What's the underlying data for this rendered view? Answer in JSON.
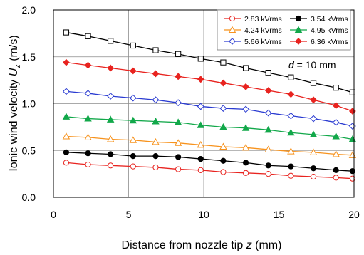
{
  "chart_data": {
    "type": "line",
    "title": "",
    "xlabel_prefix": "Distance from nozzle tip ",
    "xlabel_var": "z",
    "xlabel_unit": " (mm)",
    "ylabel_prefix": "Ionic wind velocity ",
    "ylabel_var": "U",
    "ylabel_sub": "z",
    "ylabel_unit": " (m/s)",
    "xlim": [
      0,
      20
    ],
    "ylim": [
      0,
      2.0
    ],
    "xticks": [
      0,
      5,
      10,
      15,
      20
    ],
    "xtick_labels": [
      "0",
      "5",
      "10",
      "15",
      "20"
    ],
    "yticks": [
      0,
      0.5,
      1.0,
      1.5,
      2.0
    ],
    "ytick_labels": [
      "0.0",
      "0.5",
      "1.0",
      "1.5",
      "2.0"
    ],
    "grid": true,
    "legend_position": "top-right",
    "annotation": {
      "var": "d",
      "text": " = 10 mm"
    },
    "x": [
      0.85,
      2.3,
      3.8,
      5.3,
      6.8,
      8.3,
      9.8,
      11.3,
      12.8,
      14.3,
      15.8,
      17.3,
      18.8,
      19.9
    ],
    "series": [
      {
        "name": "2.83 kVrms",
        "color": "#e8231f",
        "marker": "circle-open",
        "values": [
          0.37,
          0.35,
          0.34,
          0.33,
          0.32,
          0.3,
          0.29,
          0.27,
          0.26,
          0.25,
          0.23,
          0.22,
          0.21,
          0.2
        ]
      },
      {
        "name": "3.54 kVrms",
        "color": "#000000",
        "marker": "circle-filled",
        "values": [
          0.48,
          0.47,
          0.46,
          0.44,
          0.44,
          0.43,
          0.41,
          0.39,
          0.37,
          0.34,
          0.33,
          0.31,
          0.29,
          0.28
        ]
      },
      {
        "name": "4.24 kVrms",
        "color": "#f7931e",
        "marker": "triangle-open",
        "values": [
          0.65,
          0.64,
          0.62,
          0.61,
          0.59,
          0.58,
          0.56,
          0.54,
          0.53,
          0.51,
          0.49,
          0.48,
          0.46,
          0.45
        ]
      },
      {
        "name": "4.95 kVrms",
        "color": "#12a84a",
        "marker": "triangle-filled",
        "values": [
          0.86,
          0.84,
          0.83,
          0.82,
          0.81,
          0.8,
          0.77,
          0.75,
          0.74,
          0.72,
          0.69,
          0.67,
          0.65,
          0.62
        ]
      },
      {
        "name": "5.66 kVrms",
        "color": "#2a3bd1",
        "marker": "diamond-open",
        "values": [
          1.13,
          1.11,
          1.08,
          1.06,
          1.04,
          1.01,
          0.97,
          0.95,
          0.94,
          0.9,
          0.87,
          0.84,
          0.8,
          0.76
        ]
      },
      {
        "name": "6.36 kVrms",
        "color": "#e8231f",
        "marker": "diamond-filled",
        "values": [
          1.44,
          1.41,
          1.38,
          1.35,
          1.32,
          1.29,
          1.26,
          1.22,
          1.18,
          1.14,
          1.1,
          1.04,
          0.98,
          0.92
        ]
      },
      {
        "name": "",
        "color": "#000000",
        "marker": "square-open",
        "values": [
          1.76,
          1.72,
          1.67,
          1.62,
          1.57,
          1.53,
          1.48,
          1.44,
          1.38,
          1.33,
          1.28,
          1.22,
          1.17,
          1.12
        ]
      }
    ]
  }
}
